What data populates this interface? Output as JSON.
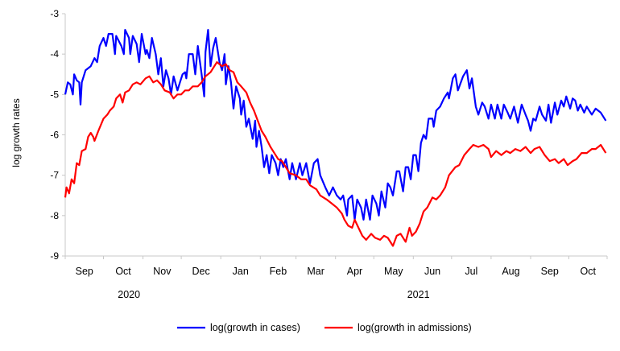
{
  "chart_data": {
    "type": "line",
    "title": "",
    "xlabel": "",
    "ylabel": "log growth rates",
    "ylim": [
      -9,
      -3
    ],
    "yticks": [
      "-3",
      "-4",
      "-5",
      "-6",
      "-7",
      "-8",
      "-9"
    ],
    "x_units": "days since 2020-09-01",
    "xlim": [
      0,
      425
    ],
    "month_ticks": [
      0,
      30,
      61,
      91,
      122,
      153,
      181,
      212,
      242,
      273,
      303,
      334,
      365,
      395,
      425
    ],
    "month_labels": [
      "Sep",
      "Oct",
      "Nov",
      "Dec",
      "Jan",
      "Feb",
      "Mar",
      "Apr",
      "May",
      "Jun",
      "Jul",
      "Aug",
      "Sep",
      "Oct"
    ],
    "year_labels": [
      {
        "label": "2020",
        "center_day": 50
      },
      {
        "label": "2021",
        "center_day": 277
      }
    ],
    "legend_position": "bottom",
    "grid": false,
    "series": [
      {
        "name": "log(growth in cases)",
        "color": "#0000ff",
        "points": [
          [
            0,
            -5.0
          ],
          [
            2,
            -4.7
          ],
          [
            4,
            -4.75
          ],
          [
            6,
            -5.0
          ],
          [
            7,
            -4.5
          ],
          [
            9,
            -4.65
          ],
          [
            11,
            -4.7
          ],
          [
            12,
            -5.25
          ],
          [
            13,
            -4.7
          ],
          [
            16,
            -4.4
          ],
          [
            20,
            -4.3
          ],
          [
            23,
            -4.1
          ],
          [
            25,
            -4.2
          ],
          [
            27,
            -3.8
          ],
          [
            30,
            -3.6
          ],
          [
            32,
            -3.8
          ],
          [
            34,
            -3.5
          ],
          [
            37,
            -3.5
          ],
          [
            39,
            -4.0
          ],
          [
            40,
            -3.55
          ],
          [
            44,
            -3.8
          ],
          [
            46,
            -4.0
          ],
          [
            47,
            -3.4
          ],
          [
            50,
            -3.6
          ],
          [
            51,
            -4.0
          ],
          [
            53,
            -3.55
          ],
          [
            56,
            -3.75
          ],
          [
            58,
            -4.2
          ],
          [
            60,
            -3.5
          ],
          [
            63,
            -4.0
          ],
          [
            64,
            -3.9
          ],
          [
            66,
            -4.1
          ],
          [
            68,
            -3.6
          ],
          [
            71,
            -4.0
          ],
          [
            73,
            -4.5
          ],
          [
            75,
            -4.1
          ],
          [
            77,
            -4.8
          ],
          [
            79,
            -4.4
          ],
          [
            81,
            -4.6
          ],
          [
            83,
            -5.0
          ],
          [
            85,
            -4.55
          ],
          [
            88,
            -4.9
          ],
          [
            90,
            -4.7
          ],
          [
            92,
            -4.5
          ],
          [
            94,
            -4.45
          ],
          [
            95,
            -4.6
          ],
          [
            97,
            -4.0
          ],
          [
            100,
            -4.0
          ],
          [
            102,
            -4.5
          ],
          [
            104,
            -3.8
          ],
          [
            107,
            -4.5
          ],
          [
            109,
            -5.05
          ],
          [
            110,
            -3.95
          ],
          [
            112,
            -3.4
          ],
          [
            114,
            -4.3
          ],
          [
            116,
            -3.85
          ],
          [
            118,
            -3.6
          ],
          [
            121,
            -4.2
          ],
          [
            123,
            -4.4
          ],
          [
            125,
            -4.0
          ],
          [
            126,
            -4.75
          ],
          [
            128,
            -4.3
          ],
          [
            130,
            -4.7
          ],
          [
            132,
            -5.35
          ],
          [
            134,
            -4.8
          ],
          [
            137,
            -5.1
          ],
          [
            138,
            -5.5
          ],
          [
            140,
            -5.15
          ],
          [
            142,
            -5.8
          ],
          [
            144,
            -5.6
          ],
          [
            147,
            -6.1
          ],
          [
            149,
            -5.65
          ],
          [
            150,
            -6.3
          ],
          [
            152,
            -5.9
          ],
          [
            154,
            -6.3
          ],
          [
            156,
            -6.8
          ],
          [
            158,
            -6.5
          ],
          [
            160,
            -6.95
          ],
          [
            162,
            -6.5
          ],
          [
            165,
            -6.7
          ],
          [
            167,
            -7.0
          ],
          [
            169,
            -6.6
          ],
          [
            171,
            -6.8
          ],
          [
            173,
            -6.6
          ],
          [
            176,
            -7.1
          ],
          [
            178,
            -6.7
          ],
          [
            181,
            -7.1
          ],
          [
            184,
            -6.7
          ],
          [
            186,
            -7.0
          ],
          [
            189,
            -6.7
          ],
          [
            192,
            -7.2
          ],
          [
            195,
            -6.7
          ],
          [
            198,
            -6.6
          ],
          [
            200,
            -7.0
          ],
          [
            204,
            -7.3
          ],
          [
            207,
            -7.5
          ],
          [
            210,
            -7.3
          ],
          [
            213,
            -7.5
          ],
          [
            216,
            -7.6
          ],
          [
            218,
            -7.5
          ],
          [
            221,
            -8.0
          ],
          [
            222,
            -7.6
          ],
          [
            225,
            -7.5
          ],
          [
            227,
            -8.1
          ],
          [
            229,
            -7.6
          ],
          [
            232,
            -7.8
          ],
          [
            234,
            -8.1
          ],
          [
            236,
            -7.6
          ],
          [
            239,
            -8.1
          ],
          [
            241,
            -7.5
          ],
          [
            244,
            -7.7
          ],
          [
            246,
            -8.0
          ],
          [
            248,
            -7.4
          ],
          [
            251,
            -7.8
          ],
          [
            253,
            -7.2
          ],
          [
            255,
            -7.3
          ],
          [
            257,
            -7.5
          ],
          [
            260,
            -6.9
          ],
          [
            262,
            -6.9
          ],
          [
            265,
            -7.4
          ],
          [
            267,
            -6.8
          ],
          [
            269,
            -6.8
          ],
          [
            271,
            -7.1
          ],
          [
            273,
            -6.5
          ],
          [
            275,
            -6.5
          ],
          [
            277,
            -6.9
          ],
          [
            279,
            -6.2
          ],
          [
            281,
            -6.0
          ],
          [
            283,
            -6.1
          ],
          [
            285,
            -5.6
          ],
          [
            288,
            -5.6
          ],
          [
            289,
            -5.8
          ],
          [
            291,
            -5.4
          ],
          [
            294,
            -5.3
          ],
          [
            297,
            -5.1
          ],
          [
            300,
            -4.95
          ],
          [
            301,
            -5.1
          ],
          [
            304,
            -4.6
          ],
          [
            306,
            -4.5
          ],
          [
            308,
            -4.9
          ],
          [
            312,
            -4.55
          ],
          [
            315,
            -4.4
          ],
          [
            317,
            -4.85
          ],
          [
            319,
            -4.6
          ],
          [
            322,
            -5.3
          ],
          [
            324,
            -5.5
          ],
          [
            327,
            -5.2
          ],
          [
            329,
            -5.3
          ],
          [
            332,
            -5.6
          ],
          [
            334,
            -5.25
          ],
          [
            337,
            -5.6
          ],
          [
            339,
            -5.25
          ],
          [
            342,
            -5.6
          ],
          [
            344,
            -5.25
          ],
          [
            347,
            -5.45
          ],
          [
            349,
            -5.6
          ],
          [
            352,
            -5.3
          ],
          [
            355,
            -5.7
          ],
          [
            358,
            -5.25
          ],
          [
            361,
            -5.5
          ],
          [
            363,
            -5.65
          ],
          [
            365,
            -5.9
          ],
          [
            367,
            -5.6
          ],
          [
            369,
            -5.65
          ],
          [
            372,
            -5.3
          ],
          [
            374,
            -5.5
          ],
          [
            377,
            -5.65
          ],
          [
            379,
            -5.25
          ],
          [
            381,
            -5.7
          ],
          [
            384,
            -5.2
          ],
          [
            386,
            -5.5
          ],
          [
            389,
            -5.15
          ],
          [
            391,
            -5.3
          ],
          [
            393,
            -5.05
          ],
          [
            396,
            -5.35
          ],
          [
            398,
            -5.1
          ],
          [
            400,
            -5.15
          ],
          [
            402,
            -5.4
          ],
          [
            404,
            -5.25
          ],
          [
            407,
            -5.45
          ],
          [
            409,
            -5.3
          ],
          [
            413,
            -5.5
          ],
          [
            416,
            -5.35
          ],
          [
            420,
            -5.45
          ],
          [
            424,
            -5.65
          ]
        ]
      },
      {
        "name": "log(growth in admissions)",
        "color": "#ff0000",
        "points": [
          [
            0,
            -7.55
          ],
          [
            1,
            -7.3
          ],
          [
            3,
            -7.45
          ],
          [
            5,
            -7.1
          ],
          [
            7,
            -7.2
          ],
          [
            9,
            -6.7
          ],
          [
            11,
            -6.75
          ],
          [
            13,
            -6.4
          ],
          [
            16,
            -6.35
          ],
          [
            18,
            -6.05
          ],
          [
            20,
            -5.95
          ],
          [
            22,
            -6.05
          ],
          [
            23,
            -6.15
          ],
          [
            26,
            -5.9
          ],
          [
            30,
            -5.6
          ],
          [
            33,
            -5.5
          ],
          [
            35,
            -5.4
          ],
          [
            38,
            -5.3
          ],
          [
            40,
            -5.1
          ],
          [
            43,
            -5.0
          ],
          [
            45,
            -5.2
          ],
          [
            47,
            -4.95
          ],
          [
            50,
            -4.9
          ],
          [
            53,
            -4.75
          ],
          [
            56,
            -4.7
          ],
          [
            59,
            -4.75
          ],
          [
            63,
            -4.6
          ],
          [
            66,
            -4.55
          ],
          [
            69,
            -4.7
          ],
          [
            72,
            -4.65
          ],
          [
            75,
            -4.75
          ],
          [
            78,
            -4.9
          ],
          [
            82,
            -4.95
          ],
          [
            85,
            -5.1
          ],
          [
            88,
            -5.0
          ],
          [
            91,
            -5.0
          ],
          [
            94,
            -4.9
          ],
          [
            97,
            -4.9
          ],
          [
            100,
            -4.8
          ],
          [
            104,
            -4.8
          ],
          [
            107,
            -4.7
          ],
          [
            110,
            -4.55
          ],
          [
            114,
            -4.45
          ],
          [
            119,
            -4.2
          ],
          [
            123,
            -4.3
          ],
          [
            126,
            -4.25
          ],
          [
            129,
            -4.4
          ],
          [
            132,
            -4.45
          ],
          [
            135,
            -4.7
          ],
          [
            138,
            -4.8
          ],
          [
            142,
            -4.95
          ],
          [
            145,
            -5.2
          ],
          [
            148,
            -5.4
          ],
          [
            151,
            -5.65
          ],
          [
            154,
            -5.9
          ],
          [
            157,
            -6.05
          ],
          [
            161,
            -6.3
          ],
          [
            164,
            -6.45
          ],
          [
            167,
            -6.6
          ],
          [
            170,
            -6.65
          ],
          [
            173,
            -6.8
          ],
          [
            176,
            -6.95
          ],
          [
            181,
            -7.0
          ],
          [
            185,
            -7.1
          ],
          [
            189,
            -7.1
          ],
          [
            192,
            -7.25
          ],
          [
            197,
            -7.35
          ],
          [
            200,
            -7.5
          ],
          [
            205,
            -7.6
          ],
          [
            209,
            -7.7
          ],
          [
            213,
            -7.8
          ],
          [
            217,
            -7.95
          ],
          [
            219,
            -8.1
          ],
          [
            222,
            -8.25
          ],
          [
            225,
            -8.3
          ],
          [
            227,
            -8.1
          ],
          [
            230,
            -8.3
          ],
          [
            233,
            -8.5
          ],
          [
            236,
            -8.6
          ],
          [
            240,
            -8.45
          ],
          [
            243,
            -8.55
          ],
          [
            247,
            -8.6
          ],
          [
            250,
            -8.5
          ],
          [
            253,
            -8.55
          ],
          [
            257,
            -8.75
          ],
          [
            260,
            -8.5
          ],
          [
            263,
            -8.45
          ],
          [
            267,
            -8.65
          ],
          [
            270,
            -8.3
          ],
          [
            272,
            -8.5
          ],
          [
            275,
            -8.4
          ],
          [
            278,
            -8.2
          ],
          [
            281,
            -7.9
          ],
          [
            284,
            -7.8
          ],
          [
            288,
            -7.55
          ],
          [
            291,
            -7.6
          ],
          [
            294,
            -7.5
          ],
          [
            298,
            -7.3
          ],
          [
            301,
            -7.0
          ],
          [
            306,
            -6.8
          ],
          [
            309,
            -6.75
          ],
          [
            313,
            -6.5
          ],
          [
            317,
            -6.35
          ],
          [
            320,
            -6.25
          ],
          [
            324,
            -6.3
          ],
          [
            328,
            -6.25
          ],
          [
            332,
            -6.35
          ],
          [
            334,
            -6.55
          ],
          [
            338,
            -6.4
          ],
          [
            342,
            -6.5
          ],
          [
            346,
            -6.4
          ],
          [
            349,
            -6.45
          ],
          [
            353,
            -6.35
          ],
          [
            357,
            -6.4
          ],
          [
            361,
            -6.3
          ],
          [
            365,
            -6.45
          ],
          [
            368,
            -6.35
          ],
          [
            372,
            -6.3
          ],
          [
            376,
            -6.5
          ],
          [
            380,
            -6.65
          ],
          [
            384,
            -6.6
          ],
          [
            387,
            -6.7
          ],
          [
            391,
            -6.6
          ],
          [
            394,
            -6.75
          ],
          [
            398,
            -6.65
          ],
          [
            401,
            -6.6
          ],
          [
            405,
            -6.45
          ],
          [
            409,
            -6.45
          ],
          [
            413,
            -6.35
          ],
          [
            416,
            -6.35
          ],
          [
            420,
            -6.25
          ],
          [
            424,
            -6.45
          ]
        ]
      }
    ]
  }
}
